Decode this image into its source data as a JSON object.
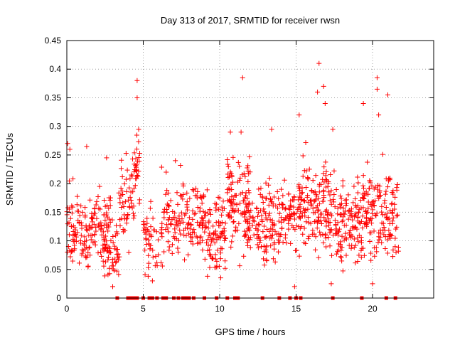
{
  "chart_data": {
    "type": "scatter",
    "title": "Day 313 of 2017, SRMTID for receiver rwsn",
    "xlabel": "GPS time / hours",
    "ylabel": "SRMTID / TECUs",
    "xlim": [
      0,
      24
    ],
    "ylim": [
      0,
      0.45
    ],
    "grid": true,
    "marker": "+",
    "color": "#ff0000",
    "x_ticks": [
      0,
      5,
      10,
      15,
      20
    ],
    "x_tick_labels": [
      "0",
      "5",
      "10",
      "15",
      "20"
    ],
    "y_ticks": [
      0,
      0.05,
      0.1,
      0.15,
      0.2,
      0.25,
      0.3,
      0.35,
      0.4,
      0.45
    ],
    "y_tick_labels": [
      "0",
      "0.05",
      "0.1",
      "0.15",
      "0.2",
      "0.25",
      "0.3",
      "0.35",
      "0.4",
      "0.45"
    ],
    "zero_points_x": [
      3.3,
      4.0,
      4.2,
      4.4,
      4.6,
      5.0,
      5.4,
      5.6,
      5.9,
      6.3,
      6.5,
      7.0,
      7.3,
      7.6,
      7.8,
      8.0,
      8.3,
      9.0,
      9.8,
      10.5,
      11.0,
      11.2,
      12.8,
      13.9,
      14.6,
      15.0,
      15.3,
      17.4,
      19.3,
      20.9,
      21.5
    ],
    "highlight_points": [
      {
        "x": 0.05,
        "y": 0.27
      },
      {
        "x": 0.2,
        "y": 0.26
      },
      {
        "x": 1.3,
        "y": 0.265
      },
      {
        "x": 2.6,
        "y": 0.245
      },
      {
        "x": 3.0,
        "y": 0.02
      },
      {
        "x": 4.6,
        "y": 0.38
      },
      {
        "x": 4.6,
        "y": 0.35
      },
      {
        "x": 4.7,
        "y": 0.295
      },
      {
        "x": 5.6,
        "y": 0.03
      },
      {
        "x": 6.5,
        "y": 0.22
      },
      {
        "x": 7.1,
        "y": 0.24
      },
      {
        "x": 11.5,
        "y": 0.385
      },
      {
        "x": 10.7,
        "y": 0.29
      },
      {
        "x": 11.4,
        "y": 0.29
      },
      {
        "x": 13.4,
        "y": 0.295
      },
      {
        "x": 15.2,
        "y": 0.32
      },
      {
        "x": 16.4,
        "y": 0.36
      },
      {
        "x": 16.5,
        "y": 0.41
      },
      {
        "x": 16.8,
        "y": 0.37
      },
      {
        "x": 16.9,
        "y": 0.34
      },
      {
        "x": 17.4,
        "y": 0.295
      },
      {
        "x": 19.4,
        "y": 0.34
      },
      {
        "x": 20.3,
        "y": 0.385
      },
      {
        "x": 20.3,
        "y": 0.365
      },
      {
        "x": 20.4,
        "y": 0.32
      },
      {
        "x": 21.0,
        "y": 0.355
      },
      {
        "x": 17.3,
        "y": 0.025
      },
      {
        "x": 20.0,
        "y": 0.025
      },
      {
        "x": 14.9,
        "y": 0.02
      }
    ],
    "bands": [
      {
        "x_start": 0.0,
        "x_end": 2.9,
        "center": 0.12,
        "spread": 0.06,
        "count": 170
      },
      {
        "x_start": 2.4,
        "x_end": 3.4,
        "center": 0.08,
        "spread": 0.04,
        "count": 45
      },
      {
        "x_start": 3.4,
        "x_end": 4.5,
        "center": 0.16,
        "spread": 0.07,
        "count": 55
      },
      {
        "x_start": 4.4,
        "x_end": 4.8,
        "center": 0.22,
        "spread": 0.05,
        "count": 25
      },
      {
        "x_start": 5.0,
        "x_end": 6.2,
        "center": 0.1,
        "spread": 0.05,
        "count": 50
      },
      {
        "x_start": 6.2,
        "x_end": 7.4,
        "center": 0.13,
        "spread": 0.06,
        "count": 60
      },
      {
        "x_start": 7.4,
        "x_end": 9.2,
        "center": 0.14,
        "spread": 0.06,
        "count": 95
      },
      {
        "x_start": 9.2,
        "x_end": 10.5,
        "center": 0.11,
        "spread": 0.06,
        "count": 85
      },
      {
        "x_start": 10.5,
        "x_end": 12.0,
        "center": 0.17,
        "spread": 0.07,
        "count": 95
      },
      {
        "x_start": 11.6,
        "x_end": 14.2,
        "center": 0.13,
        "spread": 0.06,
        "count": 150
      },
      {
        "x_start": 14.2,
        "x_end": 15.4,
        "center": 0.14,
        "spread": 0.06,
        "count": 70
      },
      {
        "x_start": 15.4,
        "x_end": 17.5,
        "center": 0.16,
        "spread": 0.07,
        "count": 140
      },
      {
        "x_start": 17.5,
        "x_end": 19.4,
        "center": 0.13,
        "spread": 0.06,
        "count": 130
      },
      {
        "x_start": 19.4,
        "x_end": 21.7,
        "center": 0.15,
        "spread": 0.07,
        "count": 150
      }
    ]
  }
}
